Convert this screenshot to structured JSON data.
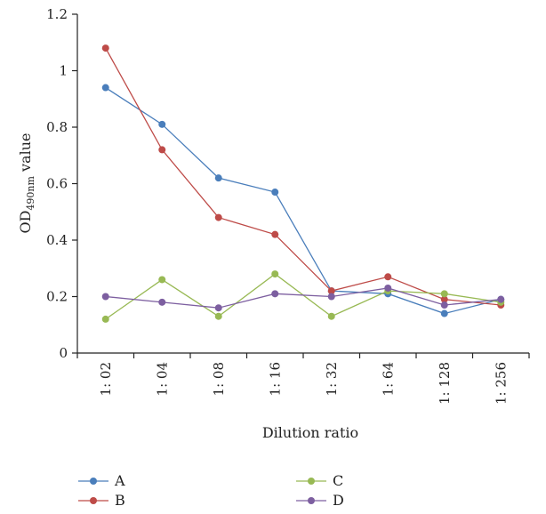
{
  "chart_data": {
    "type": "line",
    "categories": [
      "1: 02",
      "1: 04",
      "1: 08",
      "1: 16",
      "1: 32",
      "1: 64",
      "1: 128",
      "1: 256"
    ],
    "series": [
      {
        "name": "A",
        "color": "#4a7ebb",
        "values": [
          0.94,
          0.81,
          0.62,
          0.57,
          0.22,
          0.21,
          0.14,
          0.19
        ]
      },
      {
        "name": "B",
        "color": "#be4b48",
        "values": [
          1.08,
          0.72,
          0.48,
          0.42,
          0.22,
          0.27,
          0.19,
          0.17
        ]
      },
      {
        "name": "C",
        "color": "#98b954",
        "values": [
          0.12,
          0.26,
          0.13,
          0.28,
          0.13,
          0.22,
          0.21,
          0.18
        ]
      },
      {
        "name": "D",
        "color": "#7d5fa0",
        "values": [
          0.2,
          0.18,
          0.16,
          0.21,
          0.2,
          0.23,
          0.17,
          0.19
        ]
      }
    ],
    "yticks": [
      "0",
      "0.2",
      "0.4",
      "0.6",
      "0.8",
      "1",
      "1.2"
    ],
    "ylim": [
      0,
      1.2
    ],
    "xlabel": "Dilution ratio",
    "ylabel": {
      "prefix": "OD",
      "subscript": "490nm",
      "suffix": " value"
    },
    "grid": false,
    "legend": "bottom"
  }
}
